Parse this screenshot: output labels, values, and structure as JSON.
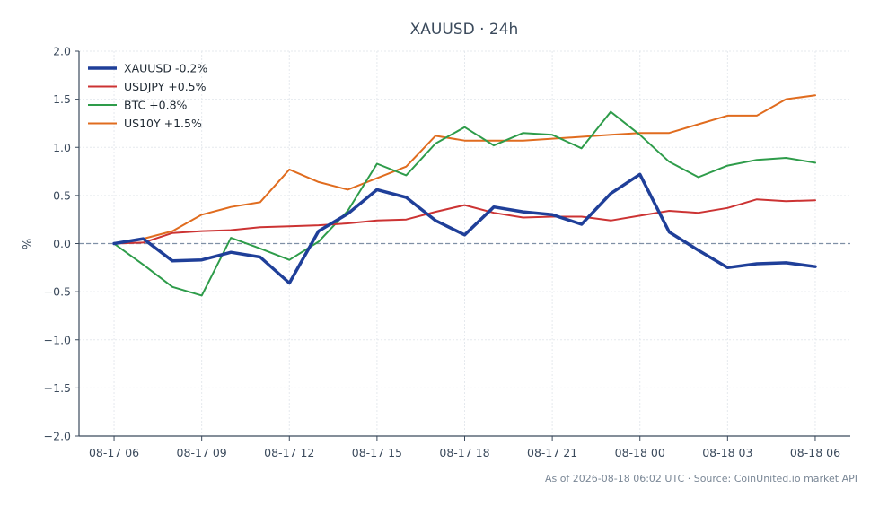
{
  "chart_data": {
    "type": "line",
    "title": "XAUUSD · 24h",
    "ylabel": "%",
    "xlabel": "",
    "ylim": [
      -2.0,
      2.0
    ],
    "yticks": [
      2.0,
      1.5,
      1.0,
      0.5,
      0.0,
      -0.5,
      -1.0,
      -1.5,
      -2.0
    ],
    "ytick_labels": [
      "2.0",
      "1.5",
      "1.0",
      "0.5",
      "0.0",
      "−0.5",
      "−1.0",
      "−1.5",
      "−2.0"
    ],
    "x_hours": [
      0,
      1,
      2,
      3,
      4,
      5,
      6,
      7,
      8,
      9,
      10,
      11,
      12,
      13,
      14,
      15,
      16,
      17,
      18,
      19,
      20,
      21,
      22,
      23,
      24
    ],
    "xticks": [
      0,
      3,
      6,
      9,
      12,
      15,
      18,
      21,
      24
    ],
    "xtick_labels": [
      "08-17 06",
      "08-17 09",
      "08-17 12",
      "08-17 15",
      "08-17 18",
      "08-17 21",
      "08-18 00",
      "08-18 03",
      "08-18 06"
    ],
    "xlim": [
      -1.2,
      25.2
    ],
    "grid": true,
    "legend_position": "top-left",
    "zero_line": true,
    "series": [
      {
        "name": "XAUUSD -0.2%",
        "color": "#1f3f99",
        "width": 3.5,
        "x": [
          0,
          1,
          2,
          3,
          4,
          5,
          6,
          7,
          8,
          9,
          10,
          11,
          12,
          13,
          14,
          15,
          16,
          17,
          18,
          19,
          20,
          21,
          22,
          23,
          24
        ],
        "values": [
          0.0,
          0.05,
          -0.18,
          -0.17,
          -0.09,
          -0.14,
          -0.41,
          0.13,
          0.31,
          0.56,
          0.48,
          0.24,
          0.09,
          0.38,
          0.33,
          0.3,
          0.2,
          0.52,
          0.72,
          0.12,
          -0.07,
          -0.25,
          -0.21,
          -0.2,
          -0.24
        ]
      },
      {
        "name": "USDJPY +0.5%",
        "color": "#cc3333",
        "width": 2,
        "x": [
          0,
          1,
          2,
          3,
          4,
          5,
          6,
          7,
          8,
          9,
          10,
          11,
          12,
          13,
          14,
          15,
          16,
          17,
          18,
          19,
          20,
          21,
          22,
          23,
          24
        ],
        "values": [
          0.0,
          0.01,
          0.11,
          0.13,
          0.14,
          0.17,
          0.18,
          0.19,
          0.21,
          0.24,
          0.25,
          0.33,
          0.4,
          0.32,
          0.27,
          0.28,
          0.28,
          0.24,
          0.29,
          0.34,
          0.32,
          0.37,
          0.46,
          0.44,
          0.45
        ]
      },
      {
        "name": "BTC +0.8%",
        "color": "#2e9c4a",
        "width": 2,
        "x": [
          0,
          1,
          2,
          3,
          4,
          5,
          6,
          7,
          8,
          9,
          10,
          11,
          12,
          13,
          14,
          15,
          16,
          17,
          18,
          19,
          20,
          21,
          22,
          23,
          24
        ],
        "values": [
          0.0,
          -0.22,
          -0.45,
          -0.54,
          0.06,
          -0.05,
          -0.17,
          0.02,
          0.34,
          0.83,
          0.71,
          1.04,
          1.21,
          1.02,
          1.15,
          1.13,
          0.99,
          1.37,
          1.13,
          0.85,
          0.69,
          0.81,
          0.87,
          0.89,
          0.84
        ]
      },
      {
        "name": "US10Y +1.5%",
        "color": "#e06c1f",
        "width": 2,
        "x": [
          0,
          1,
          2,
          3,
          4,
          5,
          6,
          7,
          8,
          9,
          10,
          11,
          12,
          13,
          14,
          15,
          16,
          17,
          18,
          19,
          20,
          21,
          22,
          23,
          24
        ],
        "values": [
          0.0,
          0.05,
          0.13,
          0.3,
          0.38,
          0.43,
          0.77,
          0.64,
          0.56,
          0.68,
          0.8,
          1.12,
          1.07,
          1.07,
          1.07,
          1.09,
          1.11,
          1.13,
          1.15,
          1.15,
          1.24,
          1.33,
          1.33,
          1.5,
          1.54
        ]
      }
    ]
  },
  "footer": {
    "text": "As of 2026-08-18 06:02 UTC · Source: CoinUnited.io market API"
  }
}
